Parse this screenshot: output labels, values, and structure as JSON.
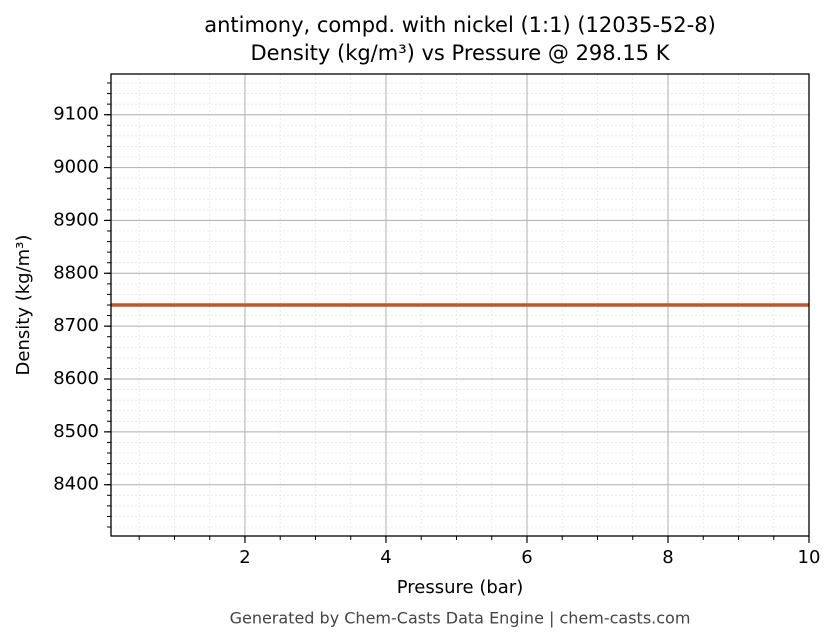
{
  "chart_data": {
    "type": "line",
    "title": "antimony, compd. with nickel (1:1) (12035-52-8)",
    "subtitle": "Density (kg/m³) vs Pressure @ 298.15 K",
    "xlabel": "Pressure (bar)",
    "ylabel": "Density (kg/m³)",
    "footer": "Generated by Chem-Casts Data Engine | chem-casts.com",
    "x": [
      0.1,
      10
    ],
    "series": [
      {
        "name": "Density",
        "color": "#c0562c",
        "values": [
          8740,
          8740
        ]
      }
    ],
    "xlim": [
      0.1,
      10
    ],
    "xticks": [
      2,
      4,
      6,
      8,
      10
    ],
    "ylim": [
      8303,
      9177
    ],
    "yticks": [
      8400,
      8500,
      8600,
      8700,
      8800,
      8900,
      9000,
      9100
    ],
    "grid": true
  }
}
